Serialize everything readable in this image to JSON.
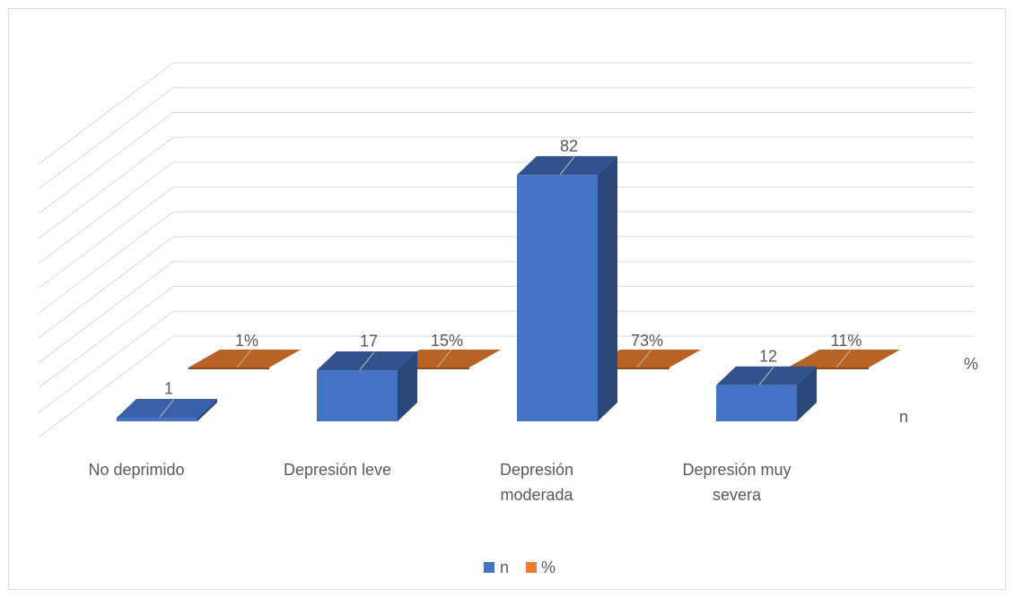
{
  "chart_data": {
    "type": "bar",
    "categories": [
      "No deprimido",
      "Depresión leve",
      "Depresión moderada",
      "Depresión muy severa"
    ],
    "series": [
      {
        "name": "n",
        "values": [
          1,
          17,
          82,
          12
        ],
        "labels": [
          "1",
          "17",
          "82",
          "12"
        ],
        "color": "#4472C4"
      },
      {
        "name": "%",
        "values": [
          1,
          15,
          73,
          11
        ],
        "labels": [
          "1%",
          "15%",
          "73%",
          "11%"
        ],
        "color": "#ED7D31"
      }
    ],
    "depth_axis_labels": [
      "%",
      "n"
    ],
    "legend_position": "bottom",
    "grid": true,
    "ylim": [
      0,
      100
    ],
    "style": "3d-column"
  }
}
